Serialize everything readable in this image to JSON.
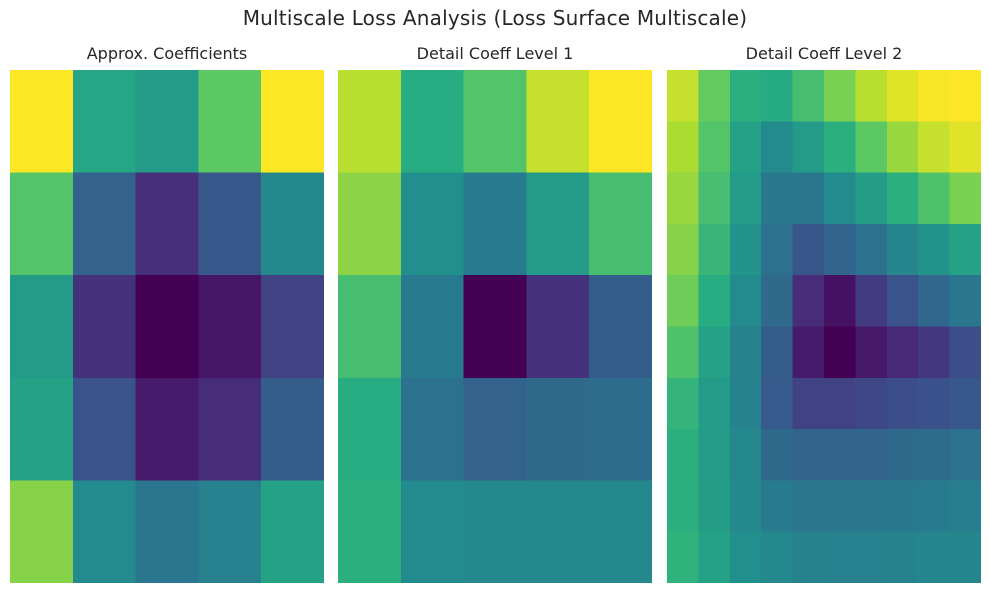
{
  "title": "Multiscale Loss Analysis (Loss Surface Multiscale)",
  "chart_data": [
    {
      "type": "heatmap",
      "title": "Approx. Coefficients",
      "colormap": "viridis",
      "vmin": 0,
      "vmax": 1,
      "values": [
        [
          1.0,
          0.6,
          0.55,
          0.75,
          1.0
        ],
        [
          0.73,
          0.32,
          0.14,
          0.28,
          0.47
        ],
        [
          0.55,
          0.15,
          0.0,
          0.06,
          0.2
        ],
        [
          0.58,
          0.26,
          0.08,
          0.13,
          0.3
        ],
        [
          0.82,
          0.48,
          0.4,
          0.44,
          0.58
        ]
      ]
    },
    {
      "type": "heatmap",
      "title": "Detail Coeff Level 1",
      "colormap": "viridis",
      "vmin": 0,
      "vmax": 1,
      "values": [
        [
          0.9,
          0.63,
          0.73,
          0.92,
          1.0
        ],
        [
          0.83,
          0.5,
          0.42,
          0.55,
          0.7
        ],
        [
          0.7,
          0.42,
          0.0,
          0.15,
          0.3
        ],
        [
          0.63,
          0.38,
          0.32,
          0.35,
          0.36
        ],
        [
          0.64,
          0.48,
          0.47,
          0.47,
          0.47
        ]
      ]
    },
    {
      "type": "heatmap",
      "title": "Detail Coeff Level 2",
      "colormap": "viridis",
      "vmin": 0,
      "vmax": 1,
      "values": [
        [
          0.92,
          0.76,
          0.64,
          0.62,
          0.7,
          0.8,
          0.9,
          0.96,
          0.99,
          1.0
        ],
        [
          0.88,
          0.73,
          0.58,
          0.48,
          0.55,
          0.64,
          0.75,
          0.85,
          0.92,
          0.96
        ],
        [
          0.85,
          0.7,
          0.55,
          0.41,
          0.4,
          0.48,
          0.56,
          0.64,
          0.72,
          0.8
        ],
        [
          0.82,
          0.67,
          0.52,
          0.38,
          0.27,
          0.33,
          0.38,
          0.46,
          0.52,
          0.58
        ],
        [
          0.78,
          0.63,
          0.48,
          0.35,
          0.13,
          0.05,
          0.18,
          0.26,
          0.34,
          0.4
        ],
        [
          0.72,
          0.58,
          0.45,
          0.3,
          0.08,
          0.0,
          0.07,
          0.12,
          0.17,
          0.24
        ],
        [
          0.66,
          0.55,
          0.45,
          0.29,
          0.2,
          0.2,
          0.22,
          0.24,
          0.25,
          0.28
        ],
        [
          0.64,
          0.55,
          0.47,
          0.35,
          0.33,
          0.33,
          0.33,
          0.35,
          0.36,
          0.38
        ],
        [
          0.64,
          0.56,
          0.47,
          0.42,
          0.4,
          0.4,
          0.4,
          0.41,
          0.42,
          0.43
        ],
        [
          0.65,
          0.58,
          0.5,
          0.47,
          0.45,
          0.44,
          0.44,
          0.45,
          0.46,
          0.46
        ]
      ]
    }
  ]
}
